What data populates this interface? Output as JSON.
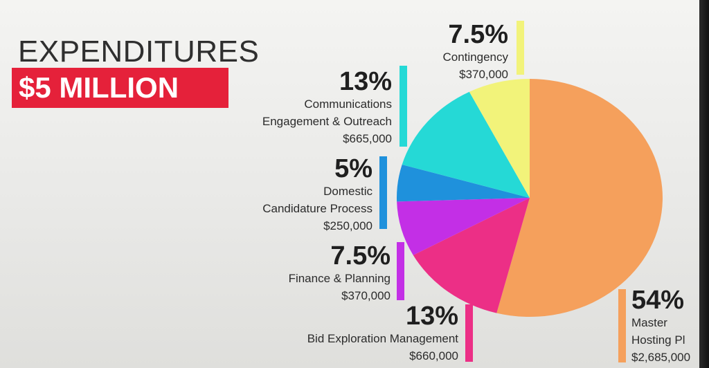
{
  "header": {
    "title": "EXPENDITURES",
    "subtitle": "$5 MILLION"
  },
  "chart_data": {
    "type": "pie",
    "title": "EXPENDITURES",
    "subtitle": "$5 MILLION",
    "slices": [
      {
        "pct_label": "54%",
        "name_lines": [
          "Master",
          "Hosting Pl"
        ],
        "amount": "$2,685,000",
        "value": 2685000,
        "percent": 54,
        "color": "#f5a05c"
      },
      {
        "pct_label": "13%",
        "name_lines": [
          "Bid Exploration Management"
        ],
        "amount": "$660,000",
        "value": 660000,
        "percent": 13,
        "color": "#ec2f86"
      },
      {
        "pct_label": "7.5%",
        "name_lines": [
          "Finance & Planning"
        ],
        "amount": "$370,000",
        "value": 370000,
        "percent": 7.5,
        "color": "#c32fe6"
      },
      {
        "pct_label": "5%",
        "name_lines": [
          "Domestic",
          "Candidature Process"
        ],
        "amount": "$250,000",
        "value": 250000,
        "percent": 5,
        "color": "#1f91dc"
      },
      {
        "pct_label": "13%",
        "name_lines": [
          "Communications",
          "Engagement & Outreach"
        ],
        "amount": "$665,000",
        "value": 665000,
        "percent": 13,
        "color": "#25d9d6"
      },
      {
        "pct_label": "7.5%",
        "name_lines": [
          "Contingency"
        ],
        "amount": "$370,000",
        "value": 370000,
        "percent": 7.5,
        "color": "#f2f37a"
      }
    ]
  }
}
